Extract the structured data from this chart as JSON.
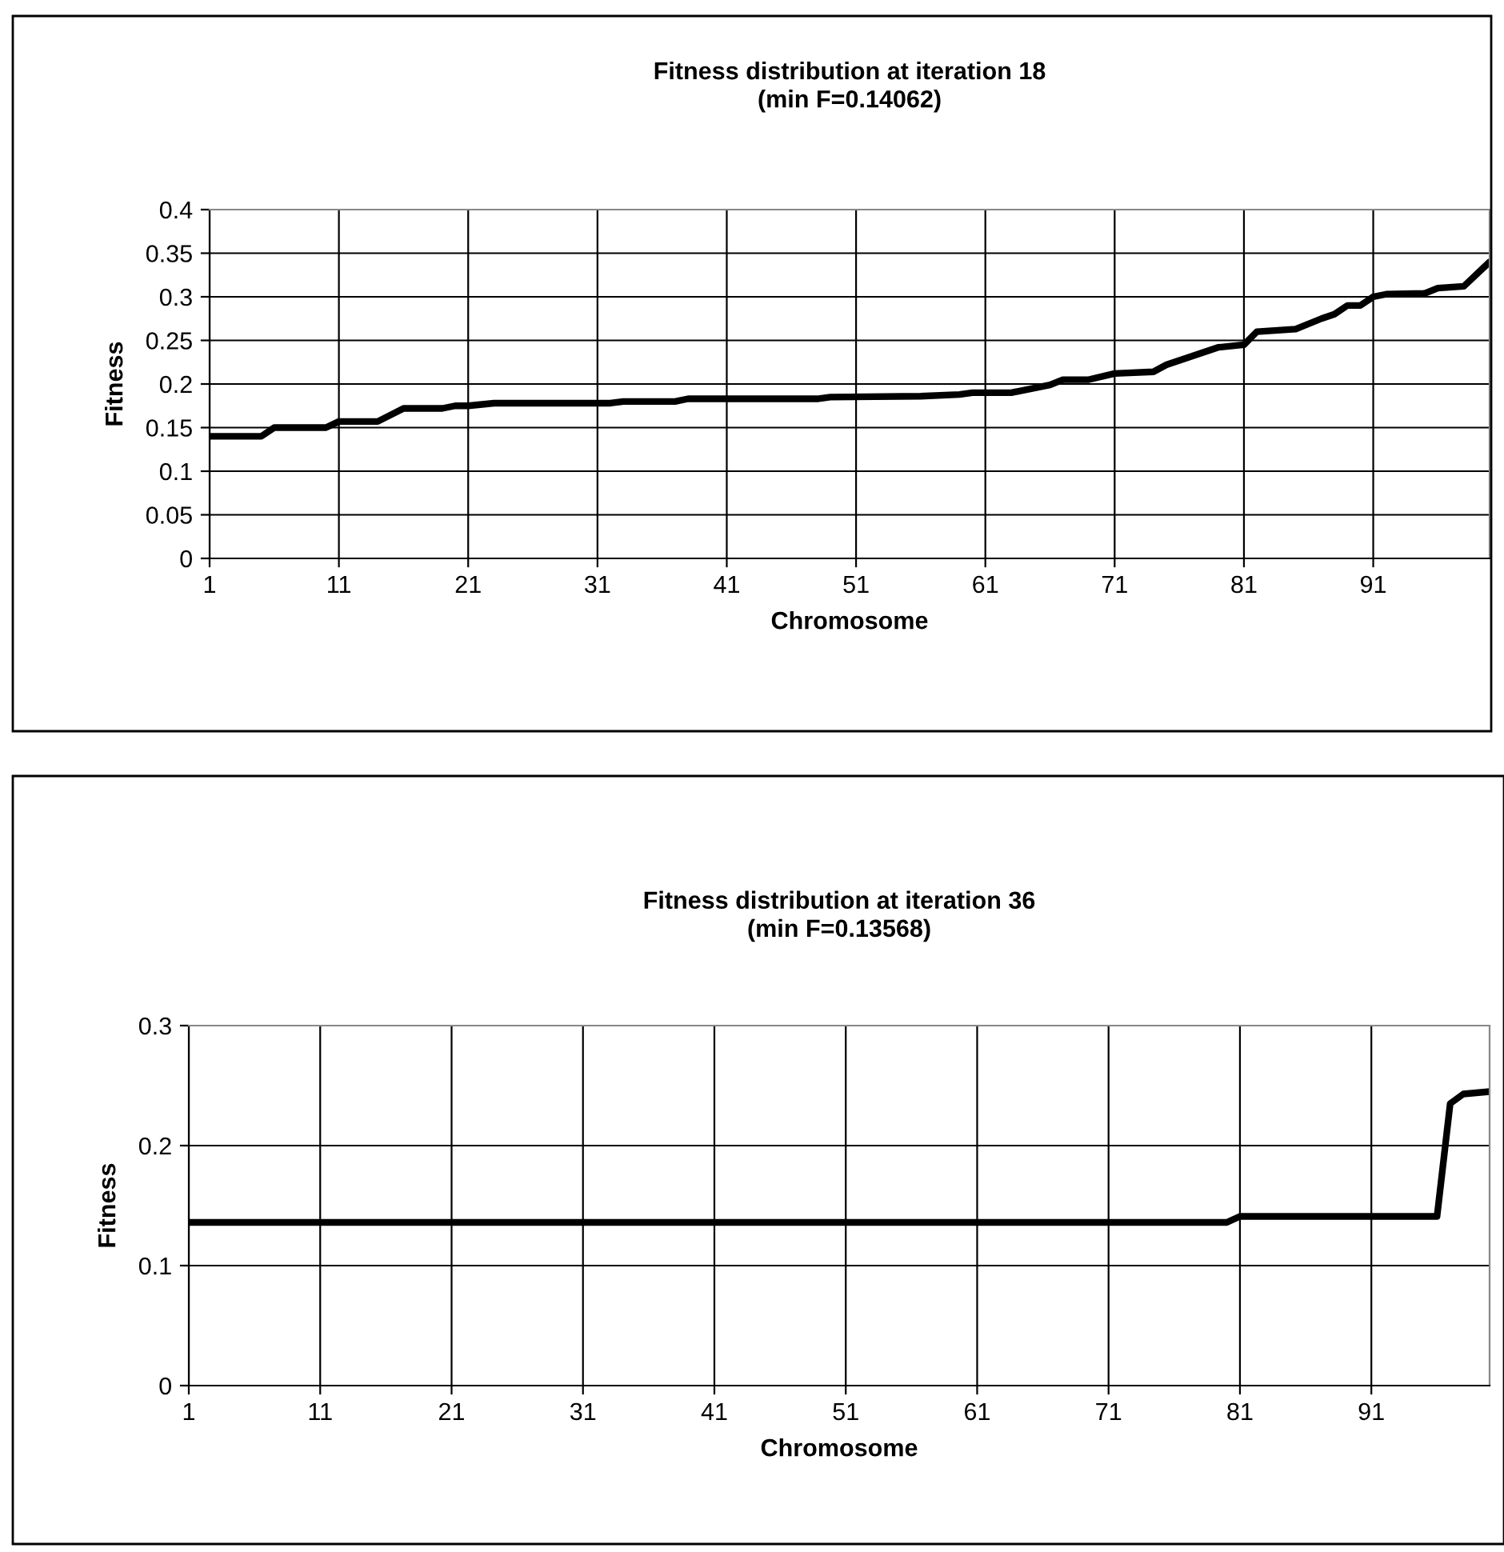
{
  "chart_data": [
    {
      "type": "line",
      "title": "Fitness distribution at iteration 18\n(min F=0.14062)",
      "xlabel": "Chromosome",
      "ylabel": "Fitness",
      "xlim": [
        1,
        100
      ],
      "xticks": [
        1,
        11,
        21,
        31,
        41,
        51,
        61,
        71,
        81,
        91
      ],
      "ylim": [
        0,
        0.4
      ],
      "yticks": [
        0,
        0.05,
        0.1,
        0.15,
        0.2,
        0.25,
        0.3,
        0.35,
        0.4
      ],
      "grid": true,
      "series": [
        {
          "color": "#000000",
          "x": [
            1,
            5,
            6,
            10,
            11,
            14,
            16,
            19,
            20,
            21,
            23,
            32,
            33,
            37,
            38,
            48,
            49,
            56,
            59,
            60,
            63,
            66,
            67,
            69,
            71,
            74,
            75,
            79,
            81,
            82,
            85,
            87,
            88,
            89,
            90,
            91,
            92,
            95,
            96,
            98,
            100
          ],
          "values": [
            0.14,
            0.14,
            0.15,
            0.15,
            0.157,
            0.157,
            0.172,
            0.172,
            0.175,
            0.175,
            0.178,
            0.178,
            0.18,
            0.18,
            0.183,
            0.183,
            0.185,
            0.186,
            0.188,
            0.19,
            0.19,
            0.199,
            0.205,
            0.205,
            0.212,
            0.214,
            0.222,
            0.242,
            0.245,
            0.26,
            0.263,
            0.275,
            0.28,
            0.29,
            0.29,
            0.3,
            0.303,
            0.304,
            0.31,
            0.312,
            0.34
          ]
        }
      ]
    },
    {
      "type": "line",
      "title": "Fitness distribution at iteration 36\n(min F=0.13568)",
      "xlabel": "Chromosome",
      "ylabel": "Fitness",
      "xlim": [
        1,
        100
      ],
      "xticks": [
        1,
        11,
        21,
        31,
        41,
        51,
        61,
        71,
        81,
        91
      ],
      "ylim": [
        0,
        0.3
      ],
      "yticks": [
        0,
        0.1,
        0.2,
        0.3
      ],
      "grid": true,
      "series": [
        {
          "color": "#000000",
          "x": [
            1,
            80,
            81,
            96,
            97,
            98,
            100
          ],
          "values": [
            0.136,
            0.136,
            0.141,
            0.141,
            0.235,
            0.243,
            0.245
          ]
        }
      ]
    }
  ]
}
